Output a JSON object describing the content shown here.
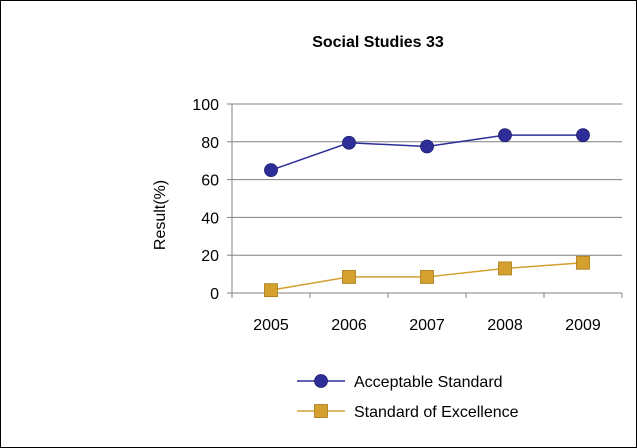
{
  "chart_data": {
    "type": "line",
    "title": "Social Studies 33",
    "xlabel": "",
    "ylabel": "Result(%)",
    "categories": [
      "2005",
      "2006",
      "2007",
      "2008",
      "2009"
    ],
    "ylim": [
      0,
      100
    ],
    "yticks": [
      "0",
      "20",
      "40",
      "60",
      "80",
      "100"
    ],
    "grid": true,
    "legend_position": "bottom",
    "series": [
      {
        "name": "Acceptable Standard",
        "values": [
          65,
          79.5,
          77.5,
          83.5,
          83.5
        ],
        "color": "#2E2E99",
        "marker": "circle"
      },
      {
        "name": "Standard of Excellence",
        "values": [
          1.5,
          8.5,
          8.5,
          13,
          16
        ],
        "color": "#D4A02E",
        "marker": "square"
      }
    ]
  }
}
